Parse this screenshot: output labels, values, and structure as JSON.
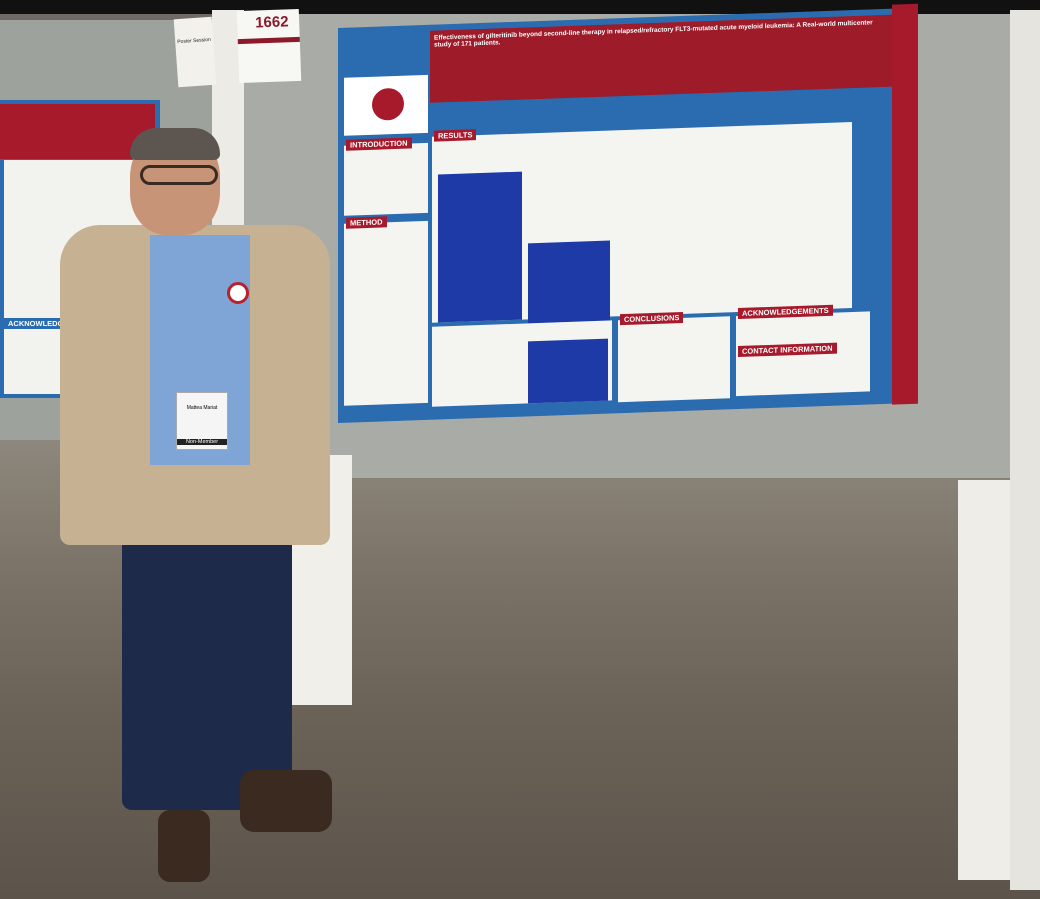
{
  "scene": "poster-session",
  "board_number": "1662",
  "left_sign": {
    "title": "Poster Session"
  },
  "poster": {
    "title": "Effectiveness of gilteritinib beyond second-line therapy in relapsed/refractory FLT3-mutated acute myeloid leukemia: A Real-world multicenter study of 171 patients.",
    "sections": {
      "introduction": "INTRODUCTION",
      "method": "METHOD",
      "results": "RESULTS",
      "conclusions": "CONCLUSIONS",
      "acknowledgements": "ACKNOWLEDGEMENTS",
      "contact": "CONTACT INFORMATION"
    }
  },
  "left_poster": {
    "acknowledgements": "ACKNOWLEDGEMENTS"
  },
  "badge": {
    "name": "Mattea Mariat",
    "type": "Non-Member"
  },
  "colors": {
    "brand_red": "#a61a2b",
    "poster_blue": "#2b6cb0",
    "wall": "#a9aca6"
  }
}
